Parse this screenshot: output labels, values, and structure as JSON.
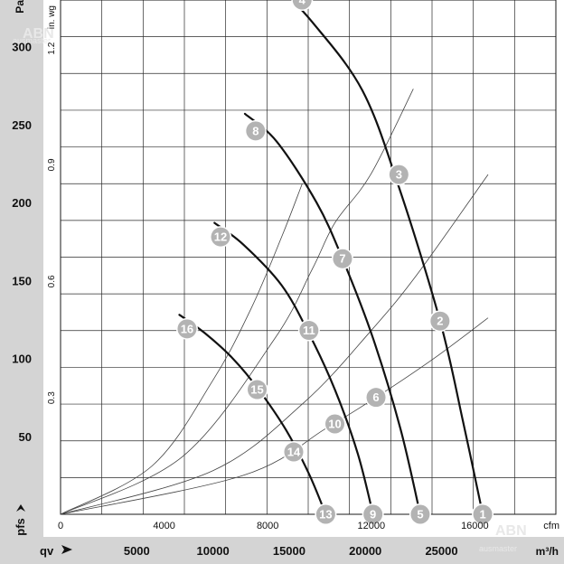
{
  "chart_data": {
    "type": "line",
    "title": "",
    "y_unit_primary": "Pa",
    "y_unit_secondary": "in. wg",
    "y_symbol": "pfs",
    "x_unit_primary": "m³/h",
    "x_unit_secondary": "cfm",
    "x_symbol": "qv",
    "ylim_pa": [
      0,
      330
    ],
    "xlim_m3h": [
      0,
      32500
    ],
    "yticks_pa": [
      "50",
      "100",
      "150",
      "200",
      "250",
      "300"
    ],
    "yticks_inwg": [
      {
        "label": "0.3",
        "pa": 74.7
      },
      {
        "label": "0.6",
        "pa": 149.4
      },
      {
        "label": "0.9",
        "pa": 224.2
      },
      {
        "label": "1.2",
        "pa": 298.9
      }
    ],
    "xticks_m3h": [
      "5000",
      "10000",
      "15000",
      "20000",
      "25000"
    ],
    "xticks_cfm": [
      {
        "label": "0",
        "m3h": 0
      },
      {
        "label": "4000",
        "m3h": 6796
      },
      {
        "label": "8000",
        "m3h": 13592
      },
      {
        "label": "12000",
        "m3h": 20388
      },
      {
        "label": "16000",
        "m3h": 27184
      }
    ],
    "series": [
      {
        "type": "fan",
        "points": [
          [
            14050,
            341
          ],
          [
            16500,
            316
          ],
          [
            19800,
            272
          ],
          [
            22200,
            210
          ],
          [
            24900,
            124
          ],
          [
            26400,
            60
          ],
          [
            27700,
            0
          ]
        ]
      },
      {
        "type": "fan",
        "points": [
          [
            12100,
            257
          ],
          [
            14200,
            239
          ],
          [
            16800,
            200
          ],
          [
            18500,
            164
          ],
          [
            20500,
            113
          ],
          [
            22300,
            55
          ],
          [
            23600,
            0
          ]
        ]
      },
      {
        "type": "fan",
        "points": [
          [
            10100,
            187
          ],
          [
            12000,
            173
          ],
          [
            14500,
            147
          ],
          [
            16300,
            116
          ],
          [
            18000,
            80
          ],
          [
            19500,
            39
          ],
          [
            20500,
            0
          ]
        ]
      },
      {
        "type": "fan",
        "points": [
          [
            7800,
            128
          ],
          [
            9500,
            116
          ],
          [
            11300,
            100
          ],
          [
            13000,
            80
          ],
          [
            14800,
            54
          ],
          [
            16300,
            26
          ],
          [
            17400,
            0
          ]
        ]
      }
    ],
    "system_curves": [
      {
        "points": [
          [
            0,
            0
          ],
          [
            6000,
            31
          ],
          [
            10000,
            86
          ],
          [
            12500,
            132
          ],
          [
            14550,
            179
          ],
          [
            15850,
            212
          ]
        ]
      },
      {
        "points": [
          [
            0,
            0
          ],
          [
            8000,
            37
          ],
          [
            14000,
            112
          ],
          [
            16500,
            157
          ],
          [
            18000,
            187
          ],
          [
            20350,
            218
          ],
          [
            23150,
            273
          ]
        ]
      },
      {
        "points": [
          [
            0,
            0
          ],
          [
            10000,
            28
          ],
          [
            16000,
            72
          ],
          [
            20300,
            117
          ],
          [
            23400,
            154
          ],
          [
            28050,
            218
          ]
        ]
      },
      {
        "points": [
          [
            0,
            0
          ],
          [
            12000,
            25
          ],
          [
            17400,
            55
          ],
          [
            20700,
            75
          ],
          [
            24500,
            100
          ],
          [
            28050,
            126
          ]
        ]
      }
    ],
    "operating_points": [
      {
        "label": "1",
        "x": 27700,
        "y": 0
      },
      {
        "label": "2",
        "x": 24900,
        "y": 124
      },
      {
        "label": "3",
        "x": 22200,
        "y": 218
      },
      {
        "label": "4",
        "x": 15850,
        "y": 330
      },
      {
        "label": "5",
        "x": 23600,
        "y": 0
      },
      {
        "label": "6",
        "x": 20700,
        "y": 75
      },
      {
        "label": "7",
        "x": 18500,
        "y": 164
      },
      {
        "label": "8",
        "x": 12800,
        "y": 246
      },
      {
        "label": "9",
        "x": 20500,
        "y": 0
      },
      {
        "label": "10",
        "x": 18000,
        "y": 58
      },
      {
        "label": "11",
        "x": 16300,
        "y": 118
      },
      {
        "label": "12",
        "x": 10500,
        "y": 178
      },
      {
        "label": "13",
        "x": 17400,
        "y": 0
      },
      {
        "label": "14",
        "x": 15300,
        "y": 40
      },
      {
        "label": "15",
        "x": 12900,
        "y": 80
      },
      {
        "label": "16",
        "x": 8300,
        "y": 119
      }
    ],
    "grid": true
  }
}
